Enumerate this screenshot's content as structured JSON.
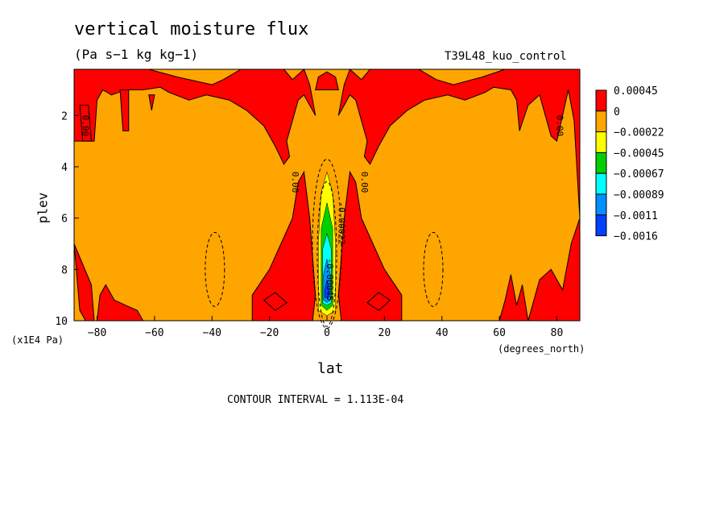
{
  "chart_data": {
    "type": "heatmap",
    "title": "vertical moisture flux",
    "units": "(Pa s−1 kg kg−1)",
    "run": "T39L48_kuo_control",
    "xlabel": "lat",
    "xunit": "(degrees_north)",
    "ylabel": "plev",
    "yunit": "(x1E4 Pa)",
    "xlim": [
      -88,
      88
    ],
    "ylim": [
      0.2,
      10
    ],
    "y_inverted": true,
    "xticks": [
      "−80",
      "−60",
      "−40",
      "−20",
      "0",
      "20",
      "40",
      "60",
      "80"
    ],
    "xtick_values": [
      -80,
      -60,
      -40,
      -20,
      0,
      20,
      40,
      60,
      80
    ],
    "yticks": [
      "2",
      "4",
      "6",
      "8",
      "10"
    ],
    "ytick_values": [
      2,
      4,
      6,
      8,
      10
    ],
    "contour_interval": "CONTOUR INTERVAL = 1.113E-04",
    "legend": {
      "placement": "right",
      "labels": [
        "0.00045",
        "0",
        "−0.00022",
        "−0.00045",
        "−0.00067",
        "−0.00089",
        "−0.0011",
        "−0.0016"
      ],
      "colors": [
        "#ff0000",
        "#ffa500",
        "#ffff00",
        "#00d000",
        "#00ffff",
        "#0090ff",
        "#0040ff"
      ]
    },
    "contour_labels": [
      {
        "text": "0.00",
        "lat": -85,
        "plev": 2.4
      },
      {
        "text": "0.00",
        "lat": 80,
        "plev": 2.4
      },
      {
        "text": "0.00",
        "lat": -12,
        "plev": 4.6
      },
      {
        "text": "0.00",
        "lat": 12,
        "plev": 4.6
      },
      {
        "text": "-0.00022",
        "lat": 4,
        "plev": 6.2
      },
      {
        "text": "-0.00045",
        "lat": 0,
        "plev": 8.4
      }
    ],
    "regions": [
      {
        "level": "positive",
        "color": "#ff0000",
        "description": "upper troposphere both hemispheres, subtropical tongues, lower levels polar"
      },
      {
        "level": "0 to -0.00022",
        "color": "#ffa500",
        "description": "background"
      },
      {
        "level": "-0.00022 to -0.00045",
        "color": "#ffff00"
      },
      {
        "level": "-0.00045 to -0.00067",
        "color": "#00d000"
      },
      {
        "level": "-0.00067 to -0.00089",
        "color": "#00ffff"
      },
      {
        "level": "-0.00089 to -0.0011",
        "color": "#0090ff"
      },
      {
        "level": "< -0.0011",
        "color": "#0040ff"
      }
    ]
  }
}
